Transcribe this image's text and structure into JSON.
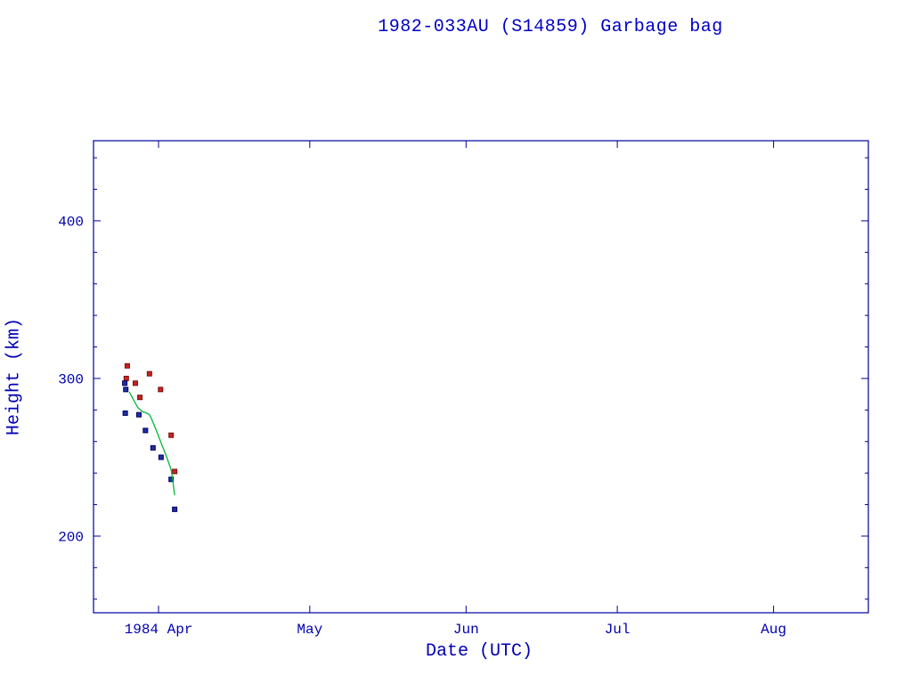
{
  "page": {
    "background": "#ffffff"
  },
  "chart_data": {
    "type": "scatter",
    "title": "1982-033AU (S14859) Garbage bag",
    "xlabel": "Date (UTC)",
    "ylabel": "Height (km)",
    "axis_color": "#0000a0",
    "text_color": "#0000b0",
    "grid": false,
    "legend": "none",
    "x_unit": "days from 1984 Apr 1",
    "xlim": [
      -12.9,
      140.8
    ],
    "ylim": [
      151.4,
      450.8
    ],
    "y_major_ticks": [
      200,
      300,
      400
    ],
    "y_minor_step": 20,
    "x_major_ticks": [
      {
        "day": 0,
        "label": "1984 Apr"
      },
      {
        "day": 30,
        "label": "May"
      },
      {
        "day": 61,
        "label": "Jun"
      },
      {
        "day": 91,
        "label": "Jul"
      },
      {
        "day": 122,
        "label": "Aug"
      }
    ],
    "series": [
      {
        "name": "apogee",
        "kind": "points",
        "marker": "square",
        "color": "#cc2020",
        "edge": "#7a0f0f",
        "points": [
          [
            -6.4,
            300
          ],
          [
            -6.2,
            308
          ],
          [
            -4.6,
            297
          ],
          [
            -3.7,
            288
          ],
          [
            -1.8,
            303
          ],
          [
            0.4,
            293
          ],
          [
            2.5,
            264
          ],
          [
            3.2,
            241
          ]
        ]
      },
      {
        "name": "perigee",
        "kind": "points",
        "marker": "square",
        "color": "#1f2fa8",
        "edge": "#000060",
        "points": [
          [
            -6.7,
            297
          ],
          [
            -6.5,
            293
          ],
          [
            -6.6,
            278
          ],
          [
            -3.9,
            277
          ],
          [
            -2.6,
            267
          ],
          [
            -1.1,
            256
          ],
          [
            0.5,
            250
          ],
          [
            2.5,
            236
          ],
          [
            3.2,
            217
          ]
        ]
      },
      {
        "name": "decay-model",
        "kind": "line",
        "color": "#00b838",
        "points": [
          [
            -5.8,
            291.5
          ],
          [
            -4.9,
            286
          ],
          [
            -4.1,
            281.5
          ],
          [
            -3.2,
            279
          ],
          [
            -2.3,
            278
          ],
          [
            -1.8,
            277
          ],
          [
            -1.4,
            274.5
          ],
          [
            -0.7,
            269
          ],
          [
            0.0,
            263.5
          ],
          [
            0.7,
            257.5
          ],
          [
            1.4,
            252
          ],
          [
            1.9,
            247.5
          ],
          [
            2.5,
            242
          ],
          [
            2.8,
            236
          ],
          [
            3.0,
            230.5
          ],
          [
            3.2,
            226
          ]
        ]
      }
    ]
  }
}
